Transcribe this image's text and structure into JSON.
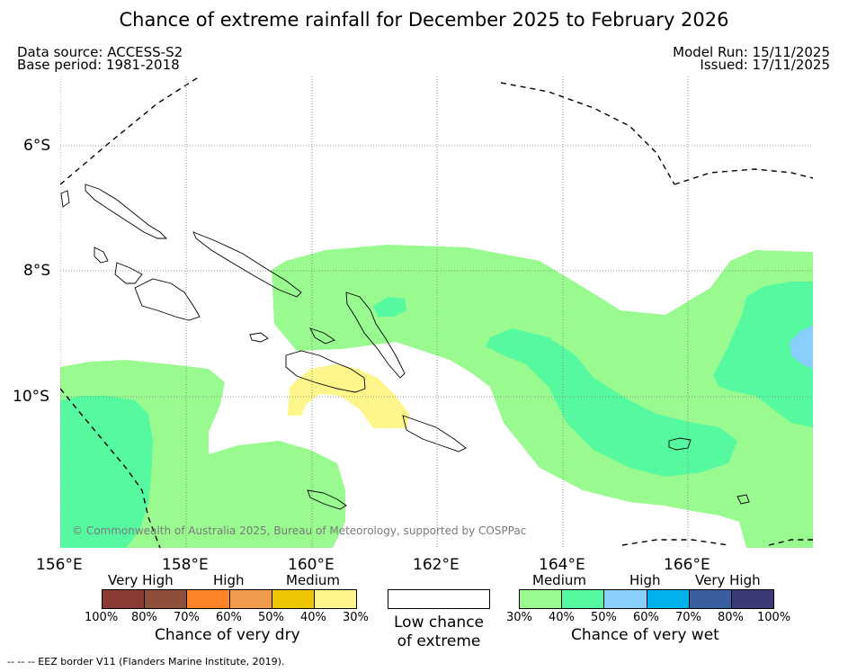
{
  "title": "Chance of extreme rainfall for December 2025 to February 2026",
  "data_source": "Data source: ACCESS-S2",
  "base_period": "Base period: 1981-2018",
  "model_run": "Model Run: 15/11/2025",
  "issued": "Issued: 17/11/2025",
  "copyright": "© Commonwealth of Australia 2025, Bureau of Meteorology, supported by COSPPac",
  "map": {
    "lon_labels": [
      "156°E",
      "158°E",
      "160°E",
      "162°E",
      "164°E",
      "166°E"
    ],
    "lat_labels": [
      "6°S",
      "8°S",
      "10°S"
    ],
    "gridlines": "dotted"
  },
  "legend_dry": {
    "headers": [
      "Very High",
      "High",
      "Medium"
    ],
    "ticks": [
      "100%",
      "80%",
      "70%",
      "60%",
      "50%",
      "40%",
      "30%"
    ],
    "colors": [
      "#8b3a36",
      "#8e4f3a",
      "#fd8228",
      "#f09b4b",
      "#eec604",
      "#fef68a"
    ],
    "caption": "Chance of very dry"
  },
  "legend_low": {
    "caption_line1": "Low chance",
    "caption_line2": "of extreme",
    "color": "#ffffff"
  },
  "legend_wet": {
    "headers": [
      "Medium",
      "High",
      "Very High"
    ],
    "ticks": [
      "30%",
      "40%",
      "50%",
      "60%",
      "70%",
      "80%",
      "100%"
    ],
    "colors": [
      "#98fa8f",
      "#56f9a0",
      "#89cffe",
      "#01b1ec",
      "#3a5fa0",
      "#3c3977"
    ],
    "caption": "Chance of very wet"
  },
  "footnote": "--  --  -- EEZ border V11 (Flanders Marine Institute, 2019)."
}
